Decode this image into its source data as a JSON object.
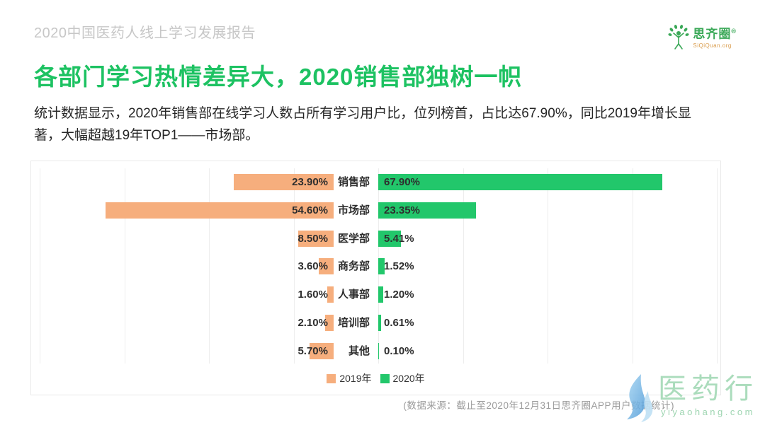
{
  "header": {
    "report_title": "2020中国医药人线上学习发展报告",
    "logo": {
      "name": "思齐圈",
      "registered_mark": "®",
      "subtext": "SiQiQuan.org"
    }
  },
  "title": "各部门学习热情差异大，2020销售部独树一帜",
  "description": "统计数据显示，2020年销售部在线学习人数占所有学习用户比，位列榜首，占比达67.90%，同比2019年增长显著，大幅超越19年TOP1——市场部。",
  "chart_data": {
    "type": "bar",
    "variant": "butterfly-horizontal",
    "title": "",
    "categories": [
      "销售部",
      "市场部",
      "医学部",
      "商务部",
      "人事部",
      "培训部",
      "其他"
    ],
    "series": [
      {
        "name": "2019年",
        "color": "#f6ae7d",
        "values": [
          23.9,
          54.6,
          8.5,
          3.6,
          1.6,
          2.1,
          5.7
        ],
        "labels": [
          "23.90%",
          "54.60%",
          "8.50%",
          "3.60%",
          "1.60%",
          "2.10%",
          "5.70%"
        ],
        "direction": "left"
      },
      {
        "name": "2020年",
        "color": "#22c76b",
        "values": [
          67.9,
          23.35,
          5.41,
          1.52,
          1.2,
          0.61,
          0.1
        ],
        "labels": [
          "67.90%",
          "23.35%",
          "5.41%",
          "1.52%",
          "1.20%",
          "0.61%",
          "0.10%"
        ],
        "direction": "right"
      }
    ],
    "axis_max": 70,
    "grid": true,
    "legend_position": "bottom"
  },
  "source_note": "(数据来源：截止至2020年12月31日思齐圈APP用户数据统计)",
  "watermark": {
    "name": "医药行",
    "url": "yiyaohang.com"
  },
  "colors": {
    "title_green": "#1dc262",
    "bar_2019_orange": "#f6ae7d",
    "bar_2020_green": "#22c76b",
    "muted_header": "#c7c7c7",
    "source_gray": "#9b9b9b"
  }
}
